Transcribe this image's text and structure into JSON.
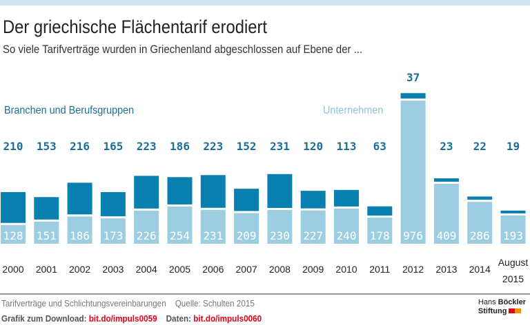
{
  "title": "Der griechische Flächentarif erodiert",
  "subtitle": "So viele Tarifverträge wurden in Griechenland abgeschlossen auf Ebene der ...",
  "colors": {
    "branchen": "#0a80b0",
    "unternehmen": "#9ccde1",
    "label_dark": "#1a6f96"
  },
  "chart_data": {
    "type": "bar",
    "stacked": true,
    "categories": [
      "2000",
      "2001",
      "2002",
      "2003",
      "2004",
      "2005",
      "2006",
      "2007",
      "2008",
      "2009",
      "2010",
      "2011",
      "2012",
      "2013",
      "2014",
      "August 2015"
    ],
    "series": [
      {
        "name": "Unternehmen",
        "values": [
          128,
          151,
          186,
          173,
          226,
          254,
          231,
          209,
          230,
          227,
          240,
          178,
          976,
          409,
          286,
          193
        ]
      },
      {
        "name": "Branchen und Berufsgruppen",
        "values": [
          210,
          153,
          216,
          165,
          223,
          186,
          223,
          152,
          231,
          120,
          113,
          63,
          37,
          23,
          22,
          19
        ]
      }
    ],
    "legend": [
      "Branchen und Berufsgruppen",
      "Unternehmen"
    ],
    "grid": false
  },
  "footer": {
    "note": "Tarifverträge und Schlichtungsvereinbarungen",
    "source": "Quelle:  Schulten 2015",
    "download_label": "Grafik zum Download:",
    "download_link": "bit.do/impuls0059",
    "data_label": "Daten:",
    "data_link": "bit.do/impuls0060"
  },
  "logo": {
    "line1a": "Hans",
    "line1b": "Böckler",
    "line2": "Stiftung"
  }
}
